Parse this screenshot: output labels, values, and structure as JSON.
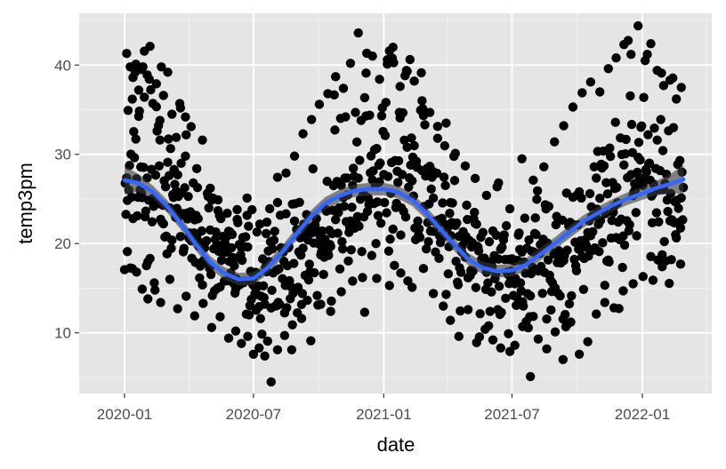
{
  "chart_data": {
    "type": "scatter",
    "title": "",
    "xlabel": "date",
    "ylabel": "temp3pm",
    "xlim": [
      "2019-10-29",
      "2022-04-09"
    ],
    "ylim": [
      3.2,
      45.8
    ],
    "x_ticks": [
      {
        "label": "2020-01",
        "date": "2020-01-01"
      },
      {
        "label": "2020-07",
        "date": "2020-07-01"
      },
      {
        "label": "2021-01",
        "date": "2021-01-01"
      },
      {
        "label": "2021-07",
        "date": "2021-07-01"
      },
      {
        "label": "2022-01",
        "date": "2022-01-01"
      }
    ],
    "x_minor_ticks": [
      "2020-04-01",
      "2020-10-01",
      "2021-04-01",
      "2021-10-01",
      "2022-04-01"
    ],
    "y_ticks": [
      10,
      20,
      30,
      40
    ],
    "y_minor_ticks": [
      5,
      15,
      25,
      35,
      45
    ],
    "grid": true,
    "panel_background": "#e5e5e5",
    "point_color": "#000000",
    "smooth_color": "#3366ff",
    "smooth_band_color": "#3c3c3c",
    "series": [
      {
        "kind": "points",
        "points": [
          [
            "2020-01-04",
            41.3
          ],
          [
            "2020-01-09",
            39.8
          ],
          [
            "2020-01-13",
            38.6
          ],
          [
            "2020-01-17",
            40.1
          ],
          [
            "2020-01-21",
            37.2
          ],
          [
            "2020-01-25",
            39.5
          ],
          [
            "2020-01-29",
            36.4
          ],
          [
            "2020-02-02",
            38.9
          ],
          [
            "2020-02-06",
            42.1
          ],
          [
            "2020-02-10",
            35.7
          ],
          [
            "2020-02-15",
            37.9
          ],
          [
            "2020-02-20",
            33.8
          ],
          [
            "2020-02-25",
            36.6
          ],
          [
            "2020-03-02",
            39.2
          ],
          [
            "2020-03-08",
            34.5
          ],
          [
            "2020-03-14",
            31.9
          ],
          [
            "2020-03-20",
            35.2
          ],
          [
            "2020-03-27",
            29.8
          ],
          [
            "2020-04-04",
            33.1
          ],
          [
            "2020-04-12",
            28.4
          ],
          [
            "2020-04-20",
            31.6
          ],
          [
            "2020-05-01",
            26.2
          ],
          [
            "2020-05-12",
            24.9
          ],
          [
            "2020-05-25",
            23.4
          ],
          [
            "2020-06-08",
            22.7
          ],
          [
            "2020-06-22",
            25.1
          ],
          [
            "2020-07-06",
            21.3
          ],
          [
            "2020-07-20",
            22.4
          ],
          [
            "2020-08-04",
            24.6
          ],
          [
            "2020-08-16",
            27.9
          ],
          [
            "2020-08-28",
            29.8
          ],
          [
            "2020-09-09",
            32.3
          ],
          [
            "2020-09-21",
            33.9
          ],
          [
            "2020-10-02",
            35.6
          ],
          [
            "2020-10-14",
            36.8
          ],
          [
            "2020-10-25",
            38.7
          ],
          [
            "2020-11-05",
            37.4
          ],
          [
            "2020-11-15",
            40.2
          ],
          [
            "2020-11-26",
            43.6
          ],
          [
            "2020-12-07",
            39.1
          ],
          [
            "2020-12-16",
            41.0
          ],
          [
            "2020-12-26",
            38.4
          ],
          [
            "2021-01-06",
            40.6
          ],
          [
            "2021-01-14",
            42.0
          ],
          [
            "2021-01-24",
            37.6
          ],
          [
            "2021-02-03",
            39.3
          ],
          [
            "2021-02-13",
            38.2
          ],
          [
            "2021-02-24",
            36.0
          ],
          [
            "2021-03-07",
            34.7
          ],
          [
            "2021-03-18",
            31.8
          ],
          [
            "2021-03-30",
            33.5
          ],
          [
            "2021-04-12",
            30.1
          ],
          [
            "2021-04-26",
            28.7
          ],
          [
            "2021-05-10",
            27.3
          ],
          [
            "2021-05-26",
            25.4
          ],
          [
            "2021-06-12",
            26.8
          ],
          [
            "2021-06-28",
            23.9
          ],
          [
            "2021-07-15",
            29.5
          ],
          [
            "2021-07-31",
            27.1
          ],
          [
            "2021-08-15",
            28.6
          ],
          [
            "2021-08-30",
            31.4
          ],
          [
            "2021-09-12",
            33.2
          ],
          [
            "2021-09-25",
            35.3
          ],
          [
            "2021-10-08",
            36.9
          ],
          [
            "2021-10-20",
            38.1
          ],
          [
            "2021-11-02",
            37.0
          ],
          [
            "2021-11-14",
            39.6
          ],
          [
            "2021-11-25",
            40.8
          ],
          [
            "2021-12-06",
            42.3
          ],
          [
            "2021-12-16",
            41.2
          ],
          [
            "2021-12-26",
            44.4
          ],
          [
            "2022-01-05",
            40.5
          ],
          [
            "2022-01-13",
            42.4
          ],
          [
            "2022-01-22",
            39.4
          ],
          [
            "2022-01-31",
            37.7
          ],
          [
            "2022-02-09",
            38.3
          ],
          [
            "2022-02-18",
            36.2
          ],
          [
            "2022-02-25",
            37.5
          ],
          [
            "2020-01-05",
            19.1
          ],
          [
            "2020-01-12",
            17.2
          ],
          [
            "2020-01-18",
            16.8
          ],
          [
            "2020-01-26",
            14.9
          ],
          [
            "2020-02-03",
            13.8
          ],
          [
            "2020-02-12",
            15.6
          ],
          [
            "2020-02-21",
            13.4
          ],
          [
            "2020-03-05",
            16.0
          ],
          [
            "2020-03-16",
            12.7
          ],
          [
            "2020-03-28",
            14.1
          ],
          [
            "2020-04-09",
            11.9
          ],
          [
            "2020-04-21",
            13.3
          ],
          [
            "2020-05-03",
            10.6
          ],
          [
            "2020-05-15",
            11.8
          ],
          [
            "2020-05-27",
            9.4
          ],
          [
            "2020-06-06",
            10.2
          ],
          [
            "2020-06-14",
            8.8
          ],
          [
            "2020-06-23",
            9.6
          ],
          [
            "2020-07-01",
            7.6
          ],
          [
            "2020-07-09",
            8.3
          ],
          [
            "2020-07-17",
            7.4
          ],
          [
            "2020-07-26",
            4.5
          ],
          [
            "2020-08-04",
            8.1
          ],
          [
            "2020-08-14",
            9.7
          ],
          [
            "2020-08-25",
            10.9
          ],
          [
            "2020-09-07",
            11.6
          ],
          [
            "2020-09-20",
            9.1
          ],
          [
            "2020-10-04",
            13.2
          ],
          [
            "2020-10-18",
            12.4
          ],
          [
            "2020-11-02",
            14.6
          ],
          [
            "2020-11-18",
            15.8
          ],
          [
            "2020-12-05",
            12.3
          ],
          [
            "2020-12-22",
            16.1
          ],
          [
            "2021-01-09",
            15.3
          ],
          [
            "2021-01-25",
            16.7
          ],
          [
            "2021-02-10",
            15.1
          ],
          [
            "2021-02-26",
            17.2
          ],
          [
            "2021-03-12",
            14.4
          ],
          [
            "2021-03-26",
            13.0
          ],
          [
            "2021-04-05",
            11.4
          ],
          [
            "2021-04-17",
            9.6
          ],
          [
            "2021-04-30",
            12.6
          ],
          [
            "2021-05-12",
            8.9
          ],
          [
            "2021-05-24",
            10.4
          ],
          [
            "2021-06-04",
            9.2
          ],
          [
            "2021-06-15",
            8.3
          ],
          [
            "2021-06-26",
            9.9
          ],
          [
            "2021-07-05",
            8.6
          ],
          [
            "2021-07-16",
            10.7
          ],
          [
            "2021-07-27",
            5.1
          ],
          [
            "2021-08-07",
            9.3
          ],
          [
            "2021-08-19",
            8.2
          ],
          [
            "2021-08-31",
            10.1
          ],
          [
            "2021-09-11",
            7.0
          ],
          [
            "2021-09-22",
            11.2
          ],
          [
            "2021-10-04",
            7.6
          ],
          [
            "2021-10-16",
            9.0
          ],
          [
            "2021-10-28",
            12.1
          ],
          [
            "2021-11-09",
            13.4
          ],
          [
            "2021-11-22",
            12.8
          ],
          [
            "2021-12-05",
            14.7
          ],
          [
            "2021-12-19",
            15.5
          ],
          [
            "2022-01-02",
            16.3
          ],
          [
            "2022-01-16",
            15.9
          ],
          [
            "2022-01-29",
            17.4
          ],
          [
            "2022-02-11",
            18.2
          ],
          [
            "2022-02-24",
            17.7
          ]
        ]
      },
      {
        "name": "",
        "kind": "smooth",
        "line": [
          [
            "2020-01-01",
            27.1
          ],
          [
            "2020-01-20",
            26.8
          ],
          [
            "2020-02-10",
            25.8
          ],
          [
            "2020-03-01",
            24.2
          ],
          [
            "2020-03-20",
            22.3
          ],
          [
            "2020-04-10",
            20.0
          ],
          [
            "2020-05-01",
            17.9
          ],
          [
            "2020-05-20",
            16.7
          ],
          [
            "2020-06-10",
            16.0
          ],
          [
            "2020-07-01",
            16.1
          ],
          [
            "2020-07-20",
            17.2
          ],
          [
            "2020-08-10",
            19.0
          ],
          [
            "2020-09-01",
            21.2
          ],
          [
            "2020-09-20",
            23.0
          ],
          [
            "2020-10-10",
            24.5
          ],
          [
            "2020-11-01",
            25.4
          ],
          [
            "2020-11-20",
            25.9
          ],
          [
            "2020-12-10",
            26.1
          ],
          [
            "2021-01-01",
            26.1
          ],
          [
            "2021-01-20",
            25.8
          ],
          [
            "2021-02-10",
            24.9
          ],
          [
            "2021-03-01",
            23.5
          ],
          [
            "2021-03-20",
            21.8
          ],
          [
            "2021-04-10",
            19.9
          ],
          [
            "2021-05-01",
            18.2
          ],
          [
            "2021-05-20",
            17.3
          ],
          [
            "2021-06-10",
            16.9
          ],
          [
            "2021-07-01",
            17.0
          ],
          [
            "2021-07-20",
            17.6
          ],
          [
            "2021-08-10",
            18.8
          ],
          [
            "2021-09-01",
            20.1
          ],
          [
            "2021-09-20",
            21.3
          ],
          [
            "2021-10-10",
            22.5
          ],
          [
            "2021-11-01",
            23.5
          ],
          [
            "2021-11-20",
            24.3
          ],
          [
            "2021-12-10",
            25.0
          ],
          [
            "2022-01-01",
            25.6
          ],
          [
            "2022-01-20",
            26.2
          ],
          [
            "2022-02-10",
            26.7
          ],
          [
            "2022-02-28",
            27.2
          ]
        ],
        "band_halfwidth": [
          1.6,
          1.0,
          0.7,
          0.7,
          0.7,
          0.7,
          0.7,
          0.7,
          0.7,
          0.7,
          0.7,
          0.7,
          0.7,
          0.7,
          0.7,
          0.7,
          0.7,
          0.7,
          0.7,
          0.7,
          0.7,
          0.7,
          0.7,
          0.7,
          0.7,
          0.7,
          0.7,
          0.7,
          0.7,
          0.7,
          0.7,
          0.7,
          0.7,
          0.7,
          0.7,
          0.7,
          0.7,
          0.8,
          1.1,
          1.6
        ]
      }
    ]
  }
}
